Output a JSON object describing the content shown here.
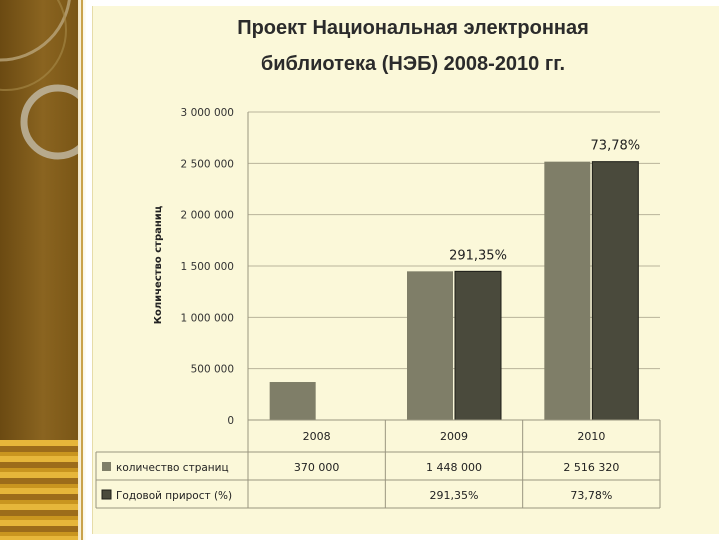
{
  "chart_data": {
    "type": "bar",
    "title_lines": [
      "Проект Национальная  электронная",
      "библиотека (НЭБ) 2008-2010 гг."
    ],
    "ylabel": "Количество страниц",
    "ylim": [
      0,
      3000000
    ],
    "ytick_labels": [
      "0",
      "500 000",
      "1 000 000",
      "1 500 000",
      "2 000 000",
      "2 500 000",
      "3 000 000"
    ],
    "ytick_values": [
      0,
      500000,
      1000000,
      1500000,
      2000000,
      2500000,
      3000000
    ],
    "categories": [
      "2008",
      "2009",
      "2010"
    ],
    "series": [
      {
        "name": "количество страниц",
        "color": "#7f7e68",
        "values": [
          370000,
          1448000,
          2516320
        ],
        "table_values": [
          "370 000",
          "1 448 000",
          "2 516 320"
        ]
      },
      {
        "name": "Годовой прирост (%)",
        "color": "#4a4a3c",
        "values": [
          null,
          1448000,
          2516320
        ],
        "table_values": [
          "",
          "291,35%",
          "73,78%"
        ]
      }
    ],
    "bar_labels": [
      "",
      "291,35%",
      "73,78%"
    ],
    "grid": true,
    "legend": "table-below"
  }
}
